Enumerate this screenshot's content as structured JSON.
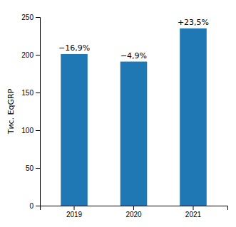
{
  "chart_data": {
    "type": "bar",
    "categories": [
      "2019",
      "2020",
      "2021"
    ],
    "values": [
      201,
      191,
      235
    ],
    "color": "#1F77B4",
    "annotations": [
      "−16,9%",
      "−4,9%",
      "+23,5%"
    ],
    "ylabel": "Тис. EqGRP",
    "ylim": [
      0,
      250
    ],
    "yticks": [
      0,
      50,
      100,
      150,
      200,
      250
    ],
    "grid": false
  }
}
